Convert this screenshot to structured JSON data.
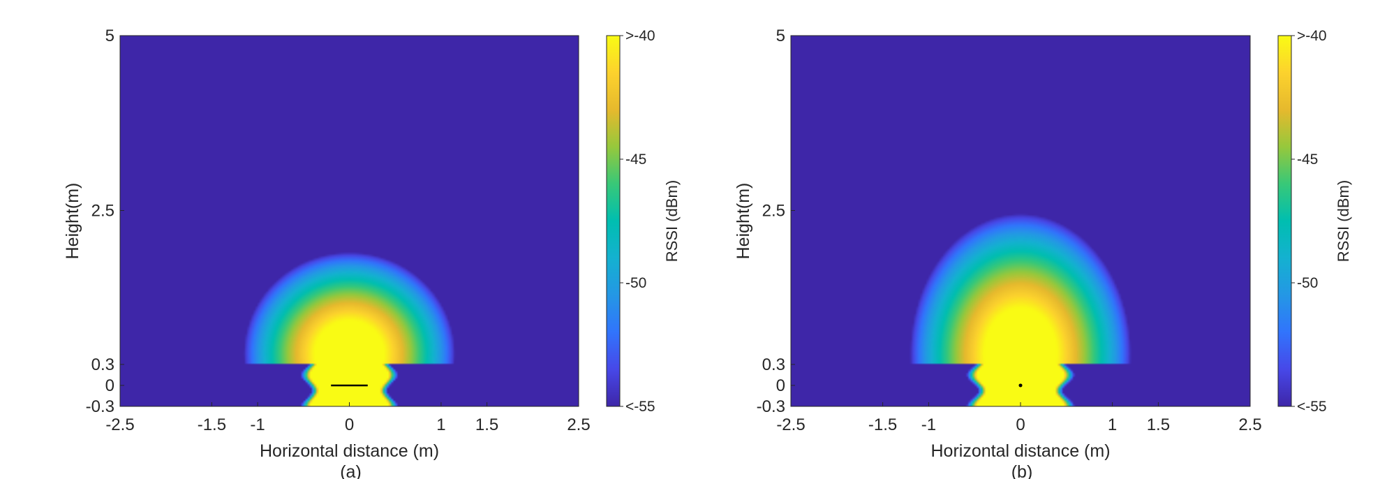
{
  "chart_data": [
    {
      "type": "heatmap",
      "panel_label": "(a)",
      "xlabel": "Horizontal distance (m)",
      "ylabel": "Height(m)",
      "xlim": [
        -2.5,
        2.5
      ],
      "ylim": [
        -0.3,
        5
      ],
      "xticks": [
        -2.5,
        -1.5,
        -1,
        0,
        1,
        1.5,
        2.5
      ],
      "xtick_labels": [
        "-2.5",
        "-1.5",
        "-1",
        "0",
        "1",
        "1.5",
        "2.5"
      ],
      "yticks": [
        -0.3,
        0,
        0.3,
        2.5,
        5
      ],
      "ytick_labels": [
        "-0.3",
        "0",
        "0.3",
        "2.5",
        "5"
      ],
      "colorbar": {
        "label": "RSSI (dBm)",
        "range": [
          -55,
          -40
        ],
        "ticks": [
          -55,
          -50,
          -45,
          -40
        ],
        "tick_labels": [
          "<-55",
          "-50",
          "-45",
          ">-40"
        ],
        "colormap": "parula"
      },
      "field": {
        "peak_center": [
          0,
          0.45
        ],
        "upper_lobe_half_width_m": 1.15,
        "upper_lobe_top_m": 1.9,
        "lower_region_half_width_m": 0.45,
        "discontinuity_height_m": 0.3
      },
      "source_marker": {
        "shape": "line",
        "x_range": [
          -0.2,
          0.2
        ],
        "y": 0
      }
    },
    {
      "type": "heatmap",
      "panel_label": "(b)",
      "xlabel": "Horizontal distance (m)",
      "ylabel": "Height(m)",
      "xlim": [
        -2.5,
        2.5
      ],
      "ylim": [
        -0.3,
        5
      ],
      "xticks": [
        -2.5,
        -1.5,
        -1,
        0,
        1,
        1.5,
        2.5
      ],
      "xtick_labels": [
        "-2.5",
        "-1.5",
        "-1",
        "0",
        "1",
        "1.5",
        "2.5"
      ],
      "yticks": [
        -0.3,
        0,
        0.3,
        2.5,
        5
      ],
      "ytick_labels": [
        "-0.3",
        "0",
        "0.3",
        "2.5",
        "5"
      ],
      "colorbar": {
        "label": "RSSI (dBm)",
        "range": [
          -55,
          -40
        ],
        "ticks": [
          -55,
          -50,
          -45,
          -40
        ],
        "tick_labels": [
          "<-55",
          "-50",
          "-45",
          ">-40"
        ],
        "colormap": "parula"
      },
      "field": {
        "peak_center": [
          0,
          0.45
        ],
        "upper_lobe_half_width_m": 1.2,
        "upper_lobe_top_m": 2.45,
        "lower_region_half_width_m": 0.5,
        "discontinuity_height_m": 0.3
      },
      "source_marker": {
        "shape": "dot",
        "x": 0,
        "y": 0
      }
    }
  ]
}
